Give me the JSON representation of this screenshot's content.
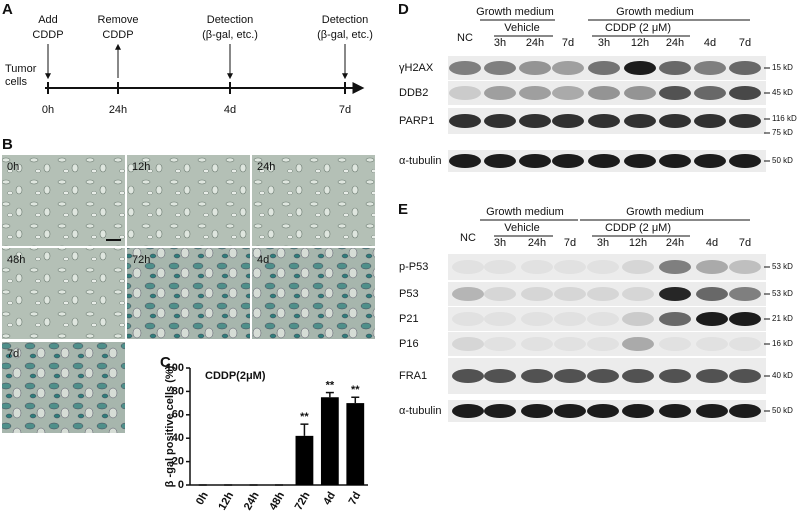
{
  "panel_labels": [
    "A",
    "B",
    "C",
    "D",
    "E"
  ],
  "timeline": {
    "subject": [
      "Tumor",
      "cells"
    ],
    "events": [
      {
        "text": [
          "Add",
          "CDDP"
        ],
        "time": "0h"
      },
      {
        "text": [
          "Remove",
          "CDDP"
        ],
        "time": "24h"
      },
      {
        "text": [
          "Detection",
          "(β-gal, etc.)"
        ],
        "time": "4d"
      },
      {
        "text": [
          "Detection",
          "(β-gal, etc.)"
        ],
        "time": "7d"
      }
    ]
  },
  "micrographs": [
    "0h",
    "12h",
    "24h",
    "48h",
    "72h",
    "4d",
    "7d"
  ],
  "chart_data": {
    "type": "bar",
    "title": "CDDP(2μM)",
    "y_label": "β -gal positive cells (%)",
    "categories": [
      "0h",
      "12h",
      "24h",
      "48h",
      "72h",
      "4d",
      "7d"
    ],
    "values": [
      0,
      0,
      0,
      0,
      42,
      75,
      70
    ],
    "errors": [
      0,
      0,
      0,
      0,
      10,
      4,
      5
    ],
    "significance": [
      null,
      null,
      null,
      null,
      "**",
      "**",
      "**"
    ],
    "color": "#000000",
    "ylim": [
      0,
      100
    ],
    "yticks": [
      0,
      20,
      40,
      60,
      80,
      100
    ]
  },
  "blot_d": {
    "headers": [
      "Growth medium",
      "Growth medium"
    ],
    "vehicle": "Vehicle",
    "treatment": "CDDP (2 μM)",
    "lanes": [
      "NC",
      "3h",
      "24h",
      "7d",
      "3h",
      "12h",
      "24h",
      "4d",
      "7d"
    ],
    "rows": [
      {
        "label": "γH2AX",
        "markers": [
          "15 kD"
        ]
      },
      {
        "label": "DDB2",
        "markers": [
          "45 kD"
        ]
      },
      {
        "label": "PARP1",
        "markers": [
          "116 kD",
          "75 kD"
        ]
      },
      {
        "label": "α-tubulin",
        "markers": [
          "50 kD"
        ]
      }
    ]
  },
  "blot_e": {
    "headers": [
      "Growth medium",
      "Growth medium"
    ],
    "vehicle": "Vehicle",
    "treatment": "CDDP (2 μM)",
    "lanes": [
      "NC",
      "3h",
      "24h",
      "7d",
      "3h",
      "12h",
      "24h",
      "4d",
      "7d"
    ],
    "rows": [
      {
        "label": "p-P53",
        "markers": [
          "53 kD"
        ]
      },
      {
        "label": "P53",
        "markers": [
          "53 kD"
        ]
      },
      {
        "label": "P21",
        "markers": [
          "21 kD"
        ]
      },
      {
        "label": "P16",
        "markers": [
          "16 kD"
        ]
      },
      {
        "label": "FRA1",
        "markers": [
          "40 kD"
        ]
      },
      {
        "label": "α-tubulin",
        "markers": [
          "50 kD"
        ]
      }
    ]
  }
}
